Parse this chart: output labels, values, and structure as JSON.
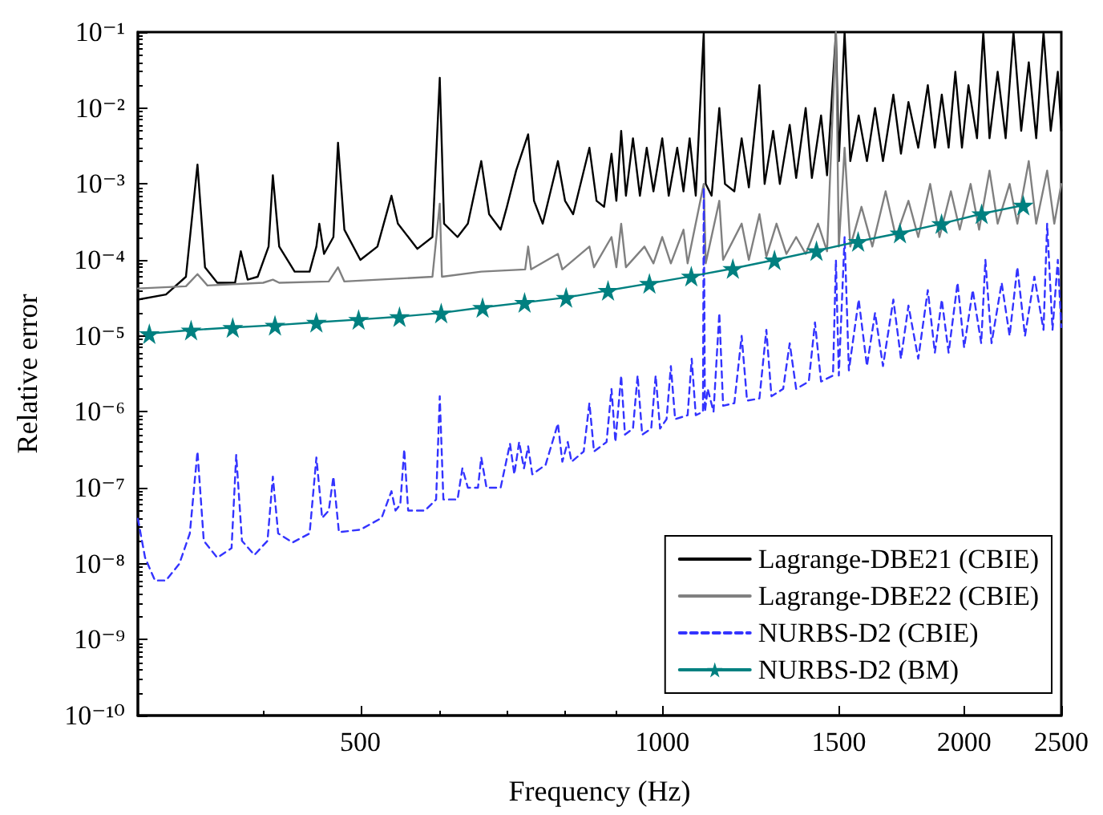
{
  "chart_data": {
    "type": "line",
    "xlabel": "Frequency (Hz)",
    "ylabel": "Relative error",
    "log": "xy",
    "grid": false,
    "legend": "bottom right",
    "xlim": [
      300,
      2500
    ],
    "xticks": [
      500,
      1000,
      1500,
      2000,
      2500
    ],
    "ylim": [
      1e-10,
      0.1
    ],
    "yticks": [
      {
        "value": 1e-10,
        "label": "10⁻¹⁰"
      },
      {
        "value": 1e-09,
        "label": "10⁻⁹"
      },
      {
        "value": 1e-08,
        "label": "10⁻⁸"
      },
      {
        "value": 1e-07,
        "label": "10⁻⁷"
      },
      {
        "value": 1e-06,
        "label": "10⁻⁶"
      },
      {
        "value": 1e-05,
        "label": "10⁻⁵"
      },
      {
        "value": 0.0001,
        "label": "10⁻⁴"
      },
      {
        "value": 0.001,
        "label": "10⁻³"
      },
      {
        "value": 0.01,
        "label": "10⁻²"
      },
      {
        "value": 0.1,
        "label": "10⁻¹"
      }
    ],
    "series": [
      {
        "name": "Lagrange-DBE21 (CBIE)",
        "color": "#000000",
        "marker": "none",
        "line_style": "solid",
        "x": [
          300,
          320,
          335,
          344,
          350,
          360,
          375,
          380,
          386,
          395,
          405,
          409,
          415,
          430,
          445,
          452,
          455,
          460,
          470,
          475,
          482,
          500,
          520,
          537,
          545,
          570,
          590,
          600,
          606,
          625,
          640,
          660,
          672,
          690,
          700,
          715,
          735,
          745,
          760,
          787,
          800,
          815,
          846,
          860,
          875,
          890,
          900,
          910,
          920,
          935,
          950,
          965,
          980,
          1000,
          1015,
          1035,
          1050,
          1065,
          1080,
          1100,
          1105,
          1120,
          1140,
          1155,
          1180,
          1200,
          1220,
          1250,
          1265,
          1290,
          1310,
          1340,
          1360,
          1390,
          1410,
          1440,
          1460,
          1490,
          1500,
          1520,
          1540,
          1570,
          1600,
          1630,
          1660,
          1700,
          1730,
          1760,
          1800,
          1840,
          1870,
          1900,
          1930,
          1960,
          1990,
          2020,
          2060,
          2090,
          2120,
          2160,
          2200,
          2240,
          2280,
          2320,
          2360,
          2400,
          2440,
          2480,
          2500
        ],
        "values": [
          3e-05,
          3.5e-05,
          6e-05,
          0.0018,
          8e-05,
          5e-05,
          5e-05,
          0.00013,
          5.5e-05,
          6e-05,
          0.00015,
          0.0013,
          0.00015,
          7e-05,
          7e-05,
          0.00015,
          0.0003,
          0.00012,
          0.0002,
          0.0035,
          0.00025,
          0.0001,
          0.00015,
          0.0007,
          0.0003,
          0.00014,
          0.0002,
          0.025,
          0.0003,
          0.0002,
          0.0003,
          0.002,
          0.0004,
          0.00025,
          0.0005,
          0.0015,
          0.0045,
          0.0006,
          0.0003,
          0.002,
          0.0006,
          0.0004,
          0.003,
          0.0006,
          0.0005,
          0.0025,
          0.0006,
          0.005,
          0.0007,
          0.004,
          0.0007,
          0.003,
          0.0008,
          0.004,
          0.0007,
          0.003,
          0.0008,
          0.004,
          0.0007,
          0.1,
          0.001,
          0.0007,
          0.01,
          0.001,
          0.0008,
          0.004,
          0.0009,
          0.02,
          0.001,
          0.005,
          0.001,
          0.006,
          0.0012,
          0.01,
          0.0012,
          0.008,
          0.0013,
          0.1,
          0.002,
          0.1,
          0.002,
          0.008,
          0.002,
          0.01,
          0.002,
          0.015,
          0.0025,
          0.012,
          0.003,
          0.02,
          0.003,
          0.015,
          0.003,
          0.03,
          0.003,
          0.02,
          0.004,
          0.1,
          0.004,
          0.03,
          0.004,
          0.1,
          0.005,
          0.04,
          0.004,
          0.1,
          0.005,
          0.03,
          0.005
        ]
      },
      {
        "name": "Lagrange-DBE22 (CBIE)",
        "color": "#808080",
        "marker": "none",
        "line_style": "solid",
        "x": [
          300,
          335,
          344,
          352,
          400,
          409,
          415,
          465,
          475,
          482,
          590,
          600,
          603,
          660,
          730,
          735,
          740,
          787,
          795,
          846,
          855,
          890,
          900,
          910,
          920,
          960,
          980,
          1000,
          1020,
          1050,
          1060,
          1100,
          1105,
          1140,
          1150,
          1200,
          1220,
          1250,
          1270,
          1300,
          1330,
          1360,
          1390,
          1430,
          1460,
          1490,
          1500,
          1520,
          1540,
          1580,
          1620,
          1670,
          1710,
          1760,
          1800,
          1850,
          1890,
          1940,
          1980,
          2030,
          2070,
          2120,
          2160,
          2220,
          2260,
          2320,
          2360,
          2420,
          2460,
          2500
        ],
        "values": [
          4.2e-05,
          4.5e-05,
          6.5e-05,
          4.6e-05,
          5e-05,
          5.5e-05,
          5e-05,
          5.2e-05,
          8e-05,
          5.2e-05,
          6e-05,
          0.00055,
          6e-05,
          7e-05,
          7.5e-05,
          0.00015,
          7.5e-05,
          0.00012,
          7.5e-05,
          0.00015,
          8e-05,
          0.0002,
          8e-05,
          0.0003,
          8e-05,
          0.00015,
          9e-05,
          0.0002,
          9e-05,
          0.00025,
          9e-05,
          0.001,
          9e-05,
          0.0006,
          0.0001,
          0.0003,
          0.0001,
          0.0004,
          0.00011,
          0.0003,
          0.00012,
          0.0002,
          0.00012,
          0.0003,
          0.00013,
          0.1,
          0.00015,
          0.003,
          0.00015,
          0.0005,
          0.00015,
          0.0008,
          0.0002,
          0.0006,
          0.0002,
          0.001,
          0.0002,
          0.0008,
          0.00025,
          0.001,
          0.00025,
          0.0015,
          0.0003,
          0.001,
          0.0003,
          0.002,
          0.0003,
          0.0015,
          0.0003,
          0.001
        ]
      },
      {
        "name": "NURBS-D2 (CBIE)",
        "color": "#3333ff",
        "marker": "none",
        "line_style": "dashed",
        "x": [
          300,
          305,
          312,
          320,
          330,
          338,
          344,
          349,
          360,
          372,
          376,
          381,
          392,
          404,
          409,
          414,
          428,
          445,
          452,
          458,
          465,
          470,
          476,
          500,
          525,
          537,
          542,
          548,
          553,
          558,
          580,
          595,
          600,
          605,
          625,
          632,
          640,
          655,
          660,
          668,
          690,
          705,
          712,
          720,
          728,
          735,
          742,
          765,
          787,
          795,
          805,
          812,
          835,
          846,
          855,
          880,
          890,
          898,
          910,
          918,
          935,
          945,
          955,
          975,
          985,
          995,
          1010,
          1020,
          1030,
          1060,
          1070,
          1080,
          1098,
          1100,
          1103,
          1110,
          1125,
          1140,
          1150,
          1180,
          1200,
          1215,
          1250,
          1270,
          1285,
          1320,
          1340,
          1360,
          1400,
          1420,
          1440,
          1480,
          1490,
          1500,
          1520,
          1535,
          1570,
          1600,
          1630,
          1660,
          1700,
          1730,
          1760,
          1800,
          1840,
          1870,
          1900,
          1930,
          1970,
          2000,
          2040,
          2080,
          2100,
          2130,
          2180,
          2220,
          2260,
          2300,
          2350,
          2400,
          2420,
          2450,
          2480,
          2500
        ],
        "values": [
          3.9e-08,
          1.2e-08,
          6e-09,
          6e-09,
          1e-08,
          2.5e-08,
          3e-07,
          2e-08,
          1.2e-08,
          1.6e-08,
          2.7e-07,
          2e-08,
          1.3e-08,
          2e-08,
          1.4e-07,
          2.5e-08,
          1.9e-08,
          2.5e-08,
          2.5e-07,
          4e-08,
          5e-08,
          1.4e-07,
          2.6e-08,
          2.8e-08,
          4e-08,
          9e-08,
          5e-08,
          6e-08,
          3.2e-07,
          5e-08,
          5e-08,
          7e-08,
          1.6e-06,
          7e-08,
          7e-08,
          1.8e-07,
          1e-07,
          1e-07,
          2.5e-07,
          1e-07,
          1e-07,
          3.8e-07,
          1.5e-07,
          4e-07,
          1.8e-07,
          3.5e-07,
          1.5e-07,
          2e-07,
          7e-07,
          2.2e-07,
          4e-07,
          2.2e-07,
          3e-07,
          1.3e-06,
          3e-07,
          4e-07,
          2e-06,
          4e-07,
          3e-06,
          5e-07,
          6e-07,
          3e-06,
          5e-07,
          6e-07,
          3e-06,
          6e-07,
          8e-07,
          4e-06,
          8e-07,
          9e-07,
          5e-06,
          9e-07,
          1e-06,
          0.0009,
          1e-06,
          2e-06,
          1e-06,
          2e-05,
          1.2e-06,
          1.3e-06,
          1e-05,
          1.4e-06,
          1.5e-06,
          1.2e-05,
          1.6e-06,
          2e-06,
          8e-06,
          2e-06,
          2.5e-06,
          1.5e-05,
          2.5e-06,
          3e-06,
          0.0001,
          3e-06,
          0.0002,
          3.5e-06,
          3e-05,
          4e-06,
          2e-05,
          4e-06,
          3e-05,
          5e-06,
          2.5e-05,
          5e-06,
          4e-05,
          6e-06,
          3e-05,
          6e-06,
          5e-05,
          7e-06,
          4e-05,
          8e-06,
          0.0001,
          8e-06,
          5e-05,
          1e-05,
          8e-05,
          1e-05,
          6e-05,
          1.2e-05,
          0.0003,
          1.2e-05,
          0.0001,
          1.3e-05
        ]
      },
      {
        "name": "NURBS-D2 (BM)",
        "color": "#008080",
        "marker": "star",
        "line_style": "solid",
        "x": [
          308,
          339,
          373,
          411,
          452,
          498,
          547,
          602,
          662,
          729,
          802,
          883,
          971,
          1069,
          1176,
          1294,
          1425,
          1568,
          1726,
          1899,
          2082,
          2291
        ],
        "values": [
          1.07e-05,
          1.19e-05,
          1.29e-05,
          1.38e-05,
          1.51e-05,
          1.64e-05,
          1.79e-05,
          2e-05,
          2.37e-05,
          2.75e-05,
          3.2e-05,
          3.96e-05,
          4.9e-05,
          6.1e-05,
          7.7e-05,
          0.0001,
          0.000132,
          0.000175,
          0.000226,
          0.0003,
          0.000405,
          0.000525
        ]
      }
    ]
  }
}
